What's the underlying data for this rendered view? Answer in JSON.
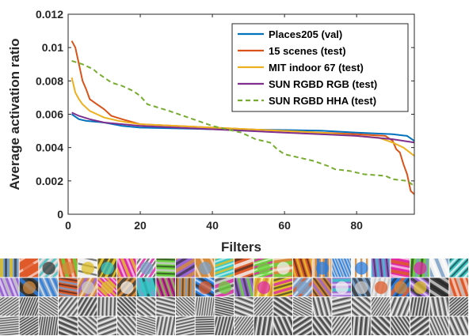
{
  "chart_data": {
    "type": "line",
    "title": "",
    "xlabel": "Filters",
    "ylabel": "Average activation ratio",
    "xlim": [
      0,
      96
    ],
    "ylim": [
      0,
      0.012
    ],
    "xticks": [
      0,
      20,
      40,
      60,
      80
    ],
    "xtick_labels": [
      "0",
      "20",
      "40",
      "60",
      "80"
    ],
    "yticks": [
      0,
      0.002,
      0.004,
      0.006,
      0.008,
      0.01,
      0.012
    ],
    "ytick_labels": [
      "0",
      "0.002",
      "0.004",
      "0.006",
      "0.008",
      "0.01",
      "0.012"
    ],
    "grid": false,
    "legend_position": "top-right",
    "series": [
      {
        "name": "Places205 (val)",
        "color": "#0072BD",
        "dash": "solid",
        "points": [
          [
            1,
            0.006
          ],
          [
            3,
            0.0057
          ],
          [
            5,
            0.0056
          ],
          [
            10,
            0.0055
          ],
          [
            15,
            0.0053
          ],
          [
            20,
            0.0052
          ],
          [
            30,
            0.00515
          ],
          [
            40,
            0.0051
          ],
          [
            50,
            0.00508
          ],
          [
            60,
            0.00505
          ],
          [
            70,
            0.00502
          ],
          [
            80,
            0.0049
          ],
          [
            90,
            0.0048
          ],
          [
            94,
            0.0047
          ],
          [
            96,
            0.0044
          ]
        ]
      },
      {
        "name": "15 scenes (test)",
        "color": "#D95319",
        "dash": "solid",
        "points": [
          [
            1,
            0.0104
          ],
          [
            2,
            0.01
          ],
          [
            3,
            0.009
          ],
          [
            4,
            0.008
          ],
          [
            5,
            0.0075
          ],
          [
            6,
            0.0069
          ],
          [
            8,
            0.0066
          ],
          [
            10,
            0.0063
          ],
          [
            12,
            0.0059
          ],
          [
            15,
            0.0057
          ],
          [
            20,
            0.0054
          ],
          [
            30,
            0.0053
          ],
          [
            40,
            0.0052
          ],
          [
            50,
            0.0051
          ],
          [
            60,
            0.005
          ],
          [
            70,
            0.0049
          ],
          [
            80,
            0.0048
          ],
          [
            88,
            0.0047
          ],
          [
            90,
            0.0044
          ],
          [
            91,
            0.0039
          ],
          [
            92,
            0.0037
          ],
          [
            93,
            0.003
          ],
          [
            94,
            0.0024
          ],
          [
            95,
            0.0014
          ],
          [
            96,
            0.0012
          ]
        ]
      },
      {
        "name": "MIT indoor 67 (test)",
        "color": "#EDB120",
        "dash": "solid",
        "points": [
          [
            1,
            0.0082
          ],
          [
            2,
            0.0073
          ],
          [
            3,
            0.0069
          ],
          [
            4,
            0.0066
          ],
          [
            6,
            0.0062
          ],
          [
            8,
            0.006
          ],
          [
            10,
            0.0058
          ],
          [
            14,
            0.0056
          ],
          [
            20,
            0.0054
          ],
          [
            30,
            0.0053
          ],
          [
            40,
            0.0052
          ],
          [
            50,
            0.0051
          ],
          [
            60,
            0.005
          ],
          [
            70,
            0.0049
          ],
          [
            80,
            0.0047
          ],
          [
            86,
            0.0046
          ],
          [
            90,
            0.0043
          ],
          [
            93,
            0.004
          ],
          [
            96,
            0.0035
          ]
        ]
      },
      {
        "name": "SUN RGBD RGB (test)",
        "color": "#7E2F8E",
        "dash": "solid",
        "points": [
          [
            1,
            0.0061
          ],
          [
            3,
            0.0059
          ],
          [
            6,
            0.0057
          ],
          [
            10,
            0.0055
          ],
          [
            15,
            0.0054
          ],
          [
            20,
            0.0053
          ],
          [
            30,
            0.0052
          ],
          [
            40,
            0.0051
          ],
          [
            50,
            0.005
          ],
          [
            60,
            0.0049
          ],
          [
            70,
            0.0048
          ],
          [
            80,
            0.0047
          ],
          [
            90,
            0.0045
          ],
          [
            96,
            0.0043
          ]
        ]
      },
      {
        "name": "SUN RGBD HHA (test)",
        "color": "#77AC30",
        "dash": "dashed",
        "points": [
          [
            1,
            0.0092
          ],
          [
            4,
            0.009
          ],
          [
            7,
            0.0087
          ],
          [
            8,
            0.0085
          ],
          [
            12,
            0.0079
          ],
          [
            15,
            0.0077
          ],
          [
            18,
            0.0074
          ],
          [
            20,
            0.0071
          ],
          [
            22,
            0.0066
          ],
          [
            28,
            0.0062
          ],
          [
            32,
            0.0059
          ],
          [
            36,
            0.0056
          ],
          [
            40,
            0.0053
          ],
          [
            44,
            0.0051
          ],
          [
            48,
            0.0049
          ],
          [
            52,
            0.0045
          ],
          [
            56,
            0.0043
          ],
          [
            58,
            0.0039
          ],
          [
            60,
            0.0036
          ],
          [
            64,
            0.0034
          ],
          [
            68,
            0.0032
          ],
          [
            72,
            0.0029
          ],
          [
            74,
            0.0027
          ],
          [
            78,
            0.0026
          ],
          [
            82,
            0.0024
          ],
          [
            88,
            0.0023
          ],
          [
            90,
            0.0021
          ],
          [
            94,
            0.002
          ],
          [
            96,
            0.0017
          ]
        ]
      }
    ]
  },
  "filters_image": {
    "rows": 4,
    "cols": 24
  }
}
